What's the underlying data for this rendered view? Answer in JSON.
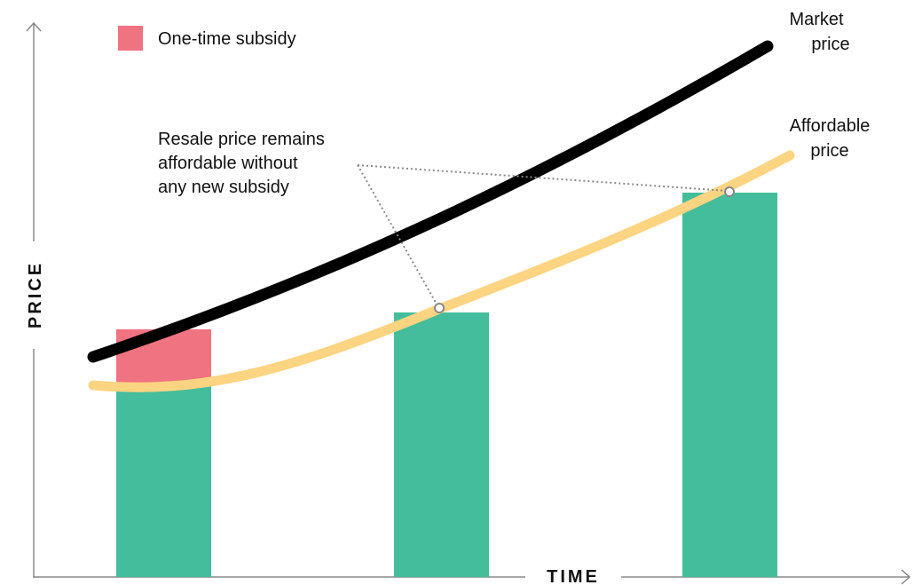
{
  "axes": {
    "x_title": "TIME",
    "y_title": "PRICE"
  },
  "legend": {
    "subsidy_label": "One-time subsidy"
  },
  "curves": {
    "market_label_line1": "Market",
    "market_label_line2": "price",
    "affordable_label_line1": "Affordable",
    "affordable_label_line2": "price"
  },
  "annotation": {
    "line1": "Resale price remains",
    "line2": "affordable without",
    "line3": "any new subsidy"
  },
  "colors": {
    "bar_green": "#44bd9c",
    "subsidy_pink": "#f07381",
    "market_line": "#000000",
    "affordable_line": "#fcd482",
    "axis": "#888888",
    "pointer": "#8a8a8a"
  }
}
